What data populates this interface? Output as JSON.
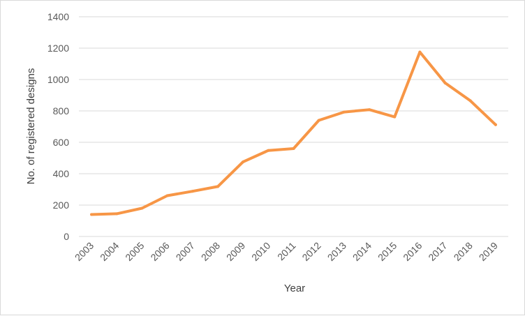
{
  "chart_data": {
    "type": "line",
    "title": "",
    "xlabel": "Year",
    "ylabel": "No. of registered designs",
    "ylim": [
      0,
      1400
    ],
    "yticks": [
      0,
      200,
      400,
      600,
      800,
      1000,
      1200,
      1400
    ],
    "grid": true,
    "legend": "none",
    "categories": [
      "2003",
      "2004",
      "2005",
      "2006",
      "2007",
      "2008",
      "2009",
      "2010",
      "2011",
      "2012",
      "2013",
      "2014",
      "2015",
      "2016",
      "2017",
      "2018",
      "2019"
    ],
    "series": [
      {
        "color": "#F79646",
        "values": [
          140,
          145,
          180,
          260,
          288,
          318,
          475,
          548,
          560,
          740,
          793,
          808,
          762,
          1175,
          978,
          865,
          712
        ]
      }
    ]
  }
}
